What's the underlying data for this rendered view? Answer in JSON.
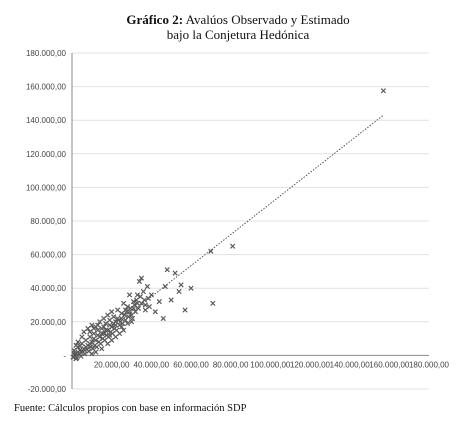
{
  "figure": {
    "label": "Gráfico 2:",
    "title_line1": "Avalúos Observado y Estimado",
    "title_line2": "bajo la Conjetura Hedónica",
    "source": "Fuente: Cálculos propios con base en información SDP"
  },
  "chart_data": {
    "type": "scatter",
    "title": "Avalúos Observado y Estimado bajo la Conjetura Hedónica",
    "xlabel": "",
    "ylabel": "",
    "xlim": [
      0,
      180000
    ],
    "ylim": [
      -20000,
      180000
    ],
    "x_ticks": [
      20000,
      40000,
      60000,
      80000,
      100000,
      120000,
      140000,
      160000,
      180000
    ],
    "x_tick_labels": [
      "20.000,00",
      "40.000,00",
      "60.000,00",
      "80.000,00",
      "100.000,00",
      "120.000,00",
      "140.000,00",
      "160.000,00",
      "180.000,00"
    ],
    "y_ticks": [
      -20000,
      0,
      20000,
      40000,
      60000,
      80000,
      100000,
      120000,
      140000,
      160000,
      180000
    ],
    "y_tick_labels": [
      "-20.000,00",
      "-",
      "20.000,00",
      "40.000,00",
      "60.000,00",
      "80.000,00",
      "100.000,00",
      "120.000,00",
      "140.000,00",
      "160.000,00",
      "180.000,00"
    ],
    "grid": "horizontal",
    "legend": "none",
    "marker": "x",
    "marker_color": "#5a5a5a",
    "trendline": {
      "style": "dotted",
      "x": [
        0,
        157000
      ],
      "y": [
        -2000,
        143000
      ]
    },
    "points": [
      {
        "x": 157000,
        "y": 157500
      },
      {
        "x": 81000,
        "y": 65000
      },
      {
        "x": 70000,
        "y": 62000
      },
      {
        "x": 71000,
        "y": 31000
      },
      {
        "x": 60000,
        "y": 40000
      },
      {
        "x": 57000,
        "y": 27000
      },
      {
        "x": 55000,
        "y": 42000
      },
      {
        "x": 54000,
        "y": 38000
      },
      {
        "x": 52000,
        "y": 49000
      },
      {
        "x": 48000,
        "y": 51000
      },
      {
        "x": 50000,
        "y": 33000
      },
      {
        "x": 47000,
        "y": 41000
      },
      {
        "x": 44000,
        "y": 32000
      },
      {
        "x": 42000,
        "y": 26000
      },
      {
        "x": 46000,
        "y": 22000
      },
      {
        "x": 38000,
        "y": 41000
      },
      {
        "x": 35000,
        "y": 46000
      },
      {
        "x": 34000,
        "y": 44000
      },
      {
        "x": 36000,
        "y": 38000
      },
      {
        "x": 33000,
        "y": 36000
      },
      {
        "x": 40000,
        "y": 36000
      },
      {
        "x": 31000,
        "y": 32000
      },
      {
        "x": 37000,
        "y": 30000
      },
      {
        "x": 39000,
        "y": 29000
      },
      {
        "x": 29000,
        "y": 36000
      },
      {
        "x": 32000,
        "y": 26000
      },
      {
        "x": 30000,
        "y": 24000
      },
      {
        "x": 28000,
        "y": 29000
      },
      {
        "x": 27000,
        "y": 21000
      },
      {
        "x": 25000,
        "y": 25000
      },
      {
        "x": 26000,
        "y": 31000
      },
      {
        "x": 24000,
        "y": 18000
      },
      {
        "x": 23000,
        "y": 27000
      },
      {
        "x": 22000,
        "y": 20000
      },
      {
        "x": 21000,
        "y": 23000
      },
      {
        "x": 20000,
        "y": 17000
      },
      {
        "x": 19000,
        "y": 21000
      },
      {
        "x": 18000,
        "y": 15000
      },
      {
        "x": 17000,
        "y": 19000
      },
      {
        "x": 16000,
        "y": 13000
      },
      {
        "x": 15000,
        "y": 16000
      },
      {
        "x": 14000,
        "y": 11000
      },
      {
        "x": 13000,
        "y": 15000
      },
      {
        "x": 12000,
        "y": 9000
      },
      {
        "x": 11000,
        "y": 13000
      },
      {
        "x": 10000,
        "y": 8000
      },
      {
        "x": 9000,
        "y": 11000
      },
      {
        "x": 8000,
        "y": 6000
      },
      {
        "x": 7000,
        "y": 9000
      },
      {
        "x": 6000,
        "y": 4000
      },
      {
        "x": 5000,
        "y": 7000
      },
      {
        "x": 4000,
        "y": 3000
      },
      {
        "x": 3000,
        "y": 5000
      },
      {
        "x": 2000,
        "y": 1000
      },
      {
        "x": 1000,
        "y": 3000
      },
      {
        "x": 500,
        "y": -1000
      },
      {
        "x": 1500,
        "y": 0
      },
      {
        "x": 2500,
        "y": -1500
      },
      {
        "x": 3500,
        "y": 1000
      },
      {
        "x": 4500,
        "y": -500
      },
      {
        "x": 5500,
        "y": 2000
      },
      {
        "x": 6500,
        "y": 1000
      },
      {
        "x": 7500,
        "y": 3500
      },
      {
        "x": 8500,
        "y": 2500
      },
      {
        "x": 9500,
        "y": 5000
      },
      {
        "x": 10500,
        "y": 4000
      },
      {
        "x": 11500,
        "y": 6000
      },
      {
        "x": 12500,
        "y": 5000
      },
      {
        "x": 13500,
        "y": 8000
      },
      {
        "x": 14500,
        "y": 7000
      },
      {
        "x": 15500,
        "y": 10000
      },
      {
        "x": 16500,
        "y": 9000
      },
      {
        "x": 17500,
        "y": 12000
      },
      {
        "x": 18500,
        "y": 11000
      },
      {
        "x": 19500,
        "y": 14000
      },
      {
        "x": 20500,
        "y": 13000
      },
      {
        "x": 21500,
        "y": 16000
      },
      {
        "x": 22500,
        "y": 15000
      },
      {
        "x": 23500,
        "y": 21000
      },
      {
        "x": 24500,
        "y": 20000
      },
      {
        "x": 25500,
        "y": 19000
      },
      {
        "x": 26500,
        "y": 24000
      },
      {
        "x": 27500,
        "y": 26000
      },
      {
        "x": 28500,
        "y": 23000
      },
      {
        "x": 29500,
        "y": 28000
      },
      {
        "x": 30500,
        "y": 22000
      },
      {
        "x": 31500,
        "y": 30000
      },
      {
        "x": 32500,
        "y": 33000
      },
      {
        "x": 33500,
        "y": 28000
      },
      {
        "x": 34500,
        "y": 35000
      },
      {
        "x": 36500,
        "y": 33000
      },
      {
        "x": 38500,
        "y": 34000
      },
      {
        "x": 6000,
        "y": 14000
      },
      {
        "x": 8000,
        "y": 16000
      },
      {
        "x": 10000,
        "y": 18000
      },
      {
        "x": 12000,
        "y": 17000
      },
      {
        "x": 14000,
        "y": 20000
      },
      {
        "x": 16000,
        "y": 22000
      },
      {
        "x": 18000,
        "y": 24000
      },
      {
        "x": 20000,
        "y": 26000
      },
      {
        "x": 5000,
        "y": 11000
      },
      {
        "x": 3000,
        "y": 8000
      },
      {
        "x": 15000,
        "y": 4000
      },
      {
        "x": 18000,
        "y": 7000
      },
      {
        "x": 20000,
        "y": 9000
      },
      {
        "x": 22000,
        "y": 11000
      },
      {
        "x": 24000,
        "y": 13000
      },
      {
        "x": 26000,
        "y": 15000
      },
      {
        "x": 12000,
        "y": 2000
      },
      {
        "x": 10000,
        "y": 1000
      },
      {
        "x": 2000,
        "y": 6000
      },
      {
        "x": 1000,
        "y": 1000
      },
      {
        "x": 2000,
        "y": -2000
      },
      {
        "x": 3000,
        "y": 2000
      },
      {
        "x": 4000,
        "y": 5500
      },
      {
        "x": 5000,
        "y": 2500
      },
      {
        "x": 7000,
        "y": 5000
      },
      {
        "x": 9000,
        "y": 7000
      },
      {
        "x": 11000,
        "y": 10000
      },
      {
        "x": 13000,
        "y": 12000
      },
      {
        "x": 15000,
        "y": 13000
      },
      {
        "x": 17000,
        "y": 15000
      },
      {
        "x": 19000,
        "y": 18000
      },
      {
        "x": 21000,
        "y": 19000
      },
      {
        "x": 23000,
        "y": 22000
      },
      {
        "x": 25000,
        "y": 22000
      },
      {
        "x": 27000,
        "y": 27000
      },
      {
        "x": 29000,
        "y": 26000
      },
      {
        "x": 31000,
        "y": 28000
      },
      {
        "x": 33000,
        "y": 31000
      },
      {
        "x": 35000,
        "y": 31000
      },
      {
        "x": 37000,
        "y": 27000
      },
      {
        "x": 9000,
        "y": 14000
      },
      {
        "x": 11000,
        "y": 16000
      },
      {
        "x": 13000,
        "y": 18000
      },
      {
        "x": 16000,
        "y": 17000
      },
      {
        "x": 19000,
        "y": 12000
      },
      {
        "x": 22000,
        "y": 18000
      },
      {
        "x": 25000,
        "y": 17000
      },
      {
        "x": 28000,
        "y": 19000
      },
      {
        "x": 30000,
        "y": 20000
      }
    ]
  }
}
